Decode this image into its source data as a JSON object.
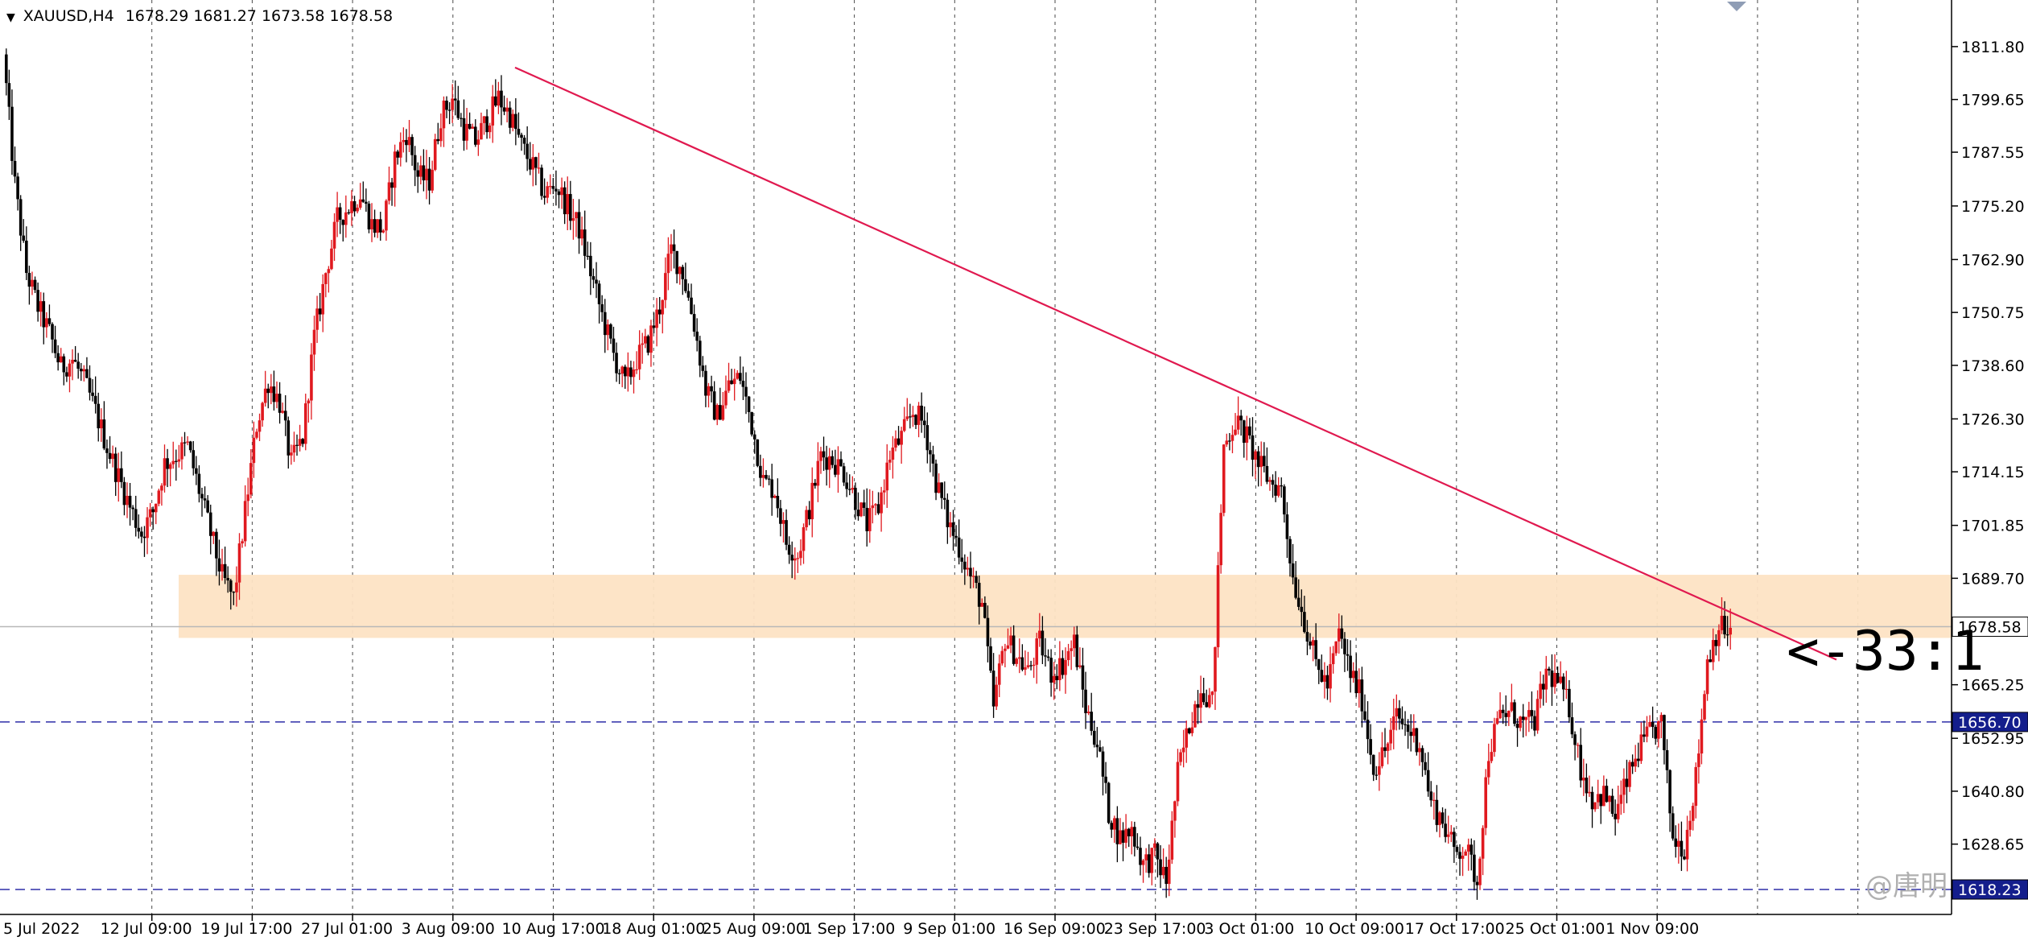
{
  "header": {
    "marker": "▼",
    "symbol": "XAUUSD,H4",
    "ohlc": "1678.29 1681.27 1673.58 1678.58"
  },
  "chart_data": {
    "type": "candlestick",
    "symbol": "XAUUSD",
    "timeframe": "H4",
    "y_ticks": [
      "1811.80",
      "1799.65",
      "1787.55",
      "1775.20",
      "1762.90",
      "1750.75",
      "1738.60",
      "1726.30",
      "1714.15",
      "1701.85",
      "1689.70",
      "1665.25",
      "1652.95",
      "1640.80",
      "1628.65"
    ],
    "x_labels": [
      "5 Jul 2022",
      "12 Jul 09:00",
      "19 Jul 17:00",
      "27 Jul 01:00",
      "3 Aug 09:00",
      "10 Aug 17:00",
      "18 Aug 01:00",
      "25 Aug 09:00",
      "1 Sep 17:00",
      "9 Sep 01:00",
      "16 Sep 09:00",
      "23 Sep 17:00",
      "3 Oct 01:00",
      "10 Oct 09:00",
      "17 Oct 17:00",
      "25 Oct 01:00",
      "1 Nov 09:00"
    ],
    "ylim": [
      1612.5,
      1822.5
    ],
    "current_price": "1678.58",
    "price_tags": [
      "1656.70",
      "1618.23"
    ],
    "horizontal_lines": [
      {
        "price": 1656.7,
        "style": "dashed"
      },
      {
        "price": 1618.23,
        "style": "dashed"
      }
    ],
    "support_zone": [
      1676.0,
      1690.5
    ],
    "trendline": {
      "from": {
        "date": "10 Aug 2022",
        "price": 1807.0
      },
      "to": {
        "date": "7 Nov 2022",
        "price": 1671.0
      }
    },
    "annotation": "<-33:1",
    "watermark": "@唐明",
    "path_points": [
      1810,
      1780,
      1760,
      1752,
      1746,
      1738,
      1740,
      1735,
      1728,
      1720,
      1713,
      1706,
      1700,
      1705,
      1716,
      1718,
      1720,
      1710,
      1700,
      1690,
      1685,
      1705,
      1725,
      1735,
      1730,
      1716,
      1722,
      1745,
      1760,
      1772,
      1775,
      1778,
      1771,
      1770,
      1786,
      1792,
      1782,
      1781,
      1796,
      1800,
      1793,
      1790,
      1795,
      1800,
      1796,
      1789,
      1784,
      1778,
      1780,
      1775,
      1770,
      1760,
      1750,
      1741,
      1734,
      1740,
      1744,
      1752,
      1765,
      1760,
      1748,
      1733,
      1727,
      1734,
      1736,
      1725,
      1712,
      1710,
      1698,
      1695,
      1706,
      1718,
      1717,
      1714,
      1708,
      1702,
      1706,
      1718,
      1722,
      1728,
      1725,
      1712,
      1703,
      1697,
      1690,
      1684,
      1660,
      1676,
      1672,
      1668,
      1675,
      1668,
      1670,
      1675,
      1660,
      1652,
      1636,
      1630,
      1632,
      1624,
      1626,
      1620,
      1645,
      1656,
      1665,
      1661,
      1720,
      1726,
      1722,
      1716,
      1712,
      1710,
      1690,
      1680,
      1670,
      1665,
      1677,
      1668,
      1662,
      1646,
      1650,
      1658,
      1655,
      1652,
      1638,
      1634,
      1627,
      1628,
      1620,
      1650,
      1658,
      1659,
      1656,
      1657,
      1668,
      1666,
      1660,
      1646,
      1639,
      1640,
      1635,
      1643,
      1650,
      1654,
      1656,
      1630,
      1628,
      1644,
      1671,
      1679,
      1677
    ]
  }
}
